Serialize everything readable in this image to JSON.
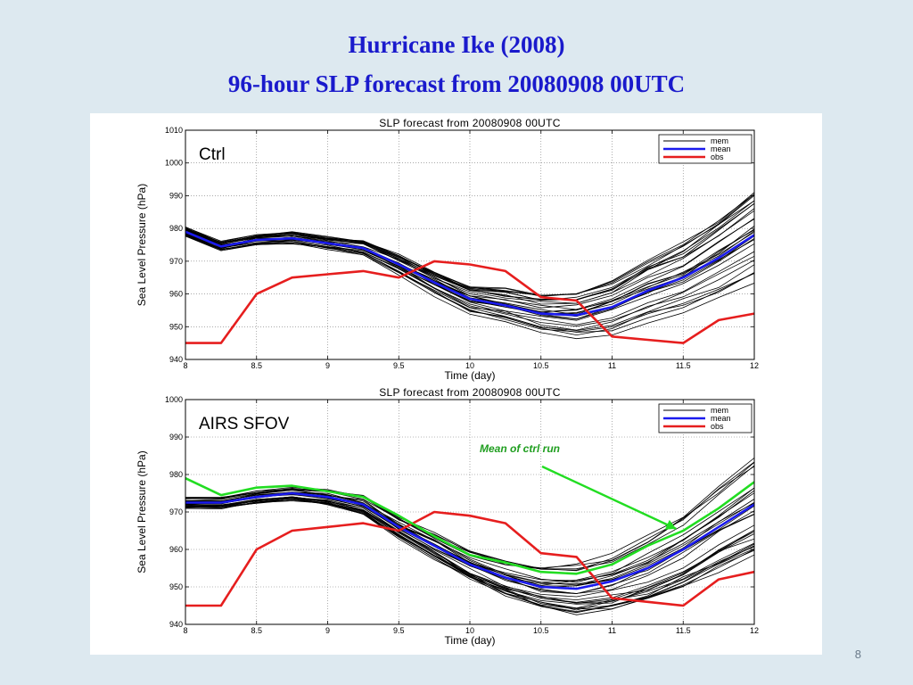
{
  "slide": {
    "title_line_1": "Hurricane Ike (2008)",
    "title_line_2": "96-hour SLP forecast from 20080908 00UTC",
    "page_number": "8",
    "title_color": "#1a1acc",
    "background": "#dde9f0"
  },
  "chart_data": [
    {
      "type": "line",
      "title": "SLP forecast from 20080908 00UTC",
      "panel_label": "Ctrl",
      "xlabel": "Time (day)",
      "ylabel": "Sea Level Pressure (hPa)",
      "xlim": [
        8,
        12
      ],
      "ylim": [
        940,
        1010
      ],
      "xticks": [
        8,
        8.5,
        9,
        9.5,
        10,
        10.5,
        11,
        11.5,
        12
      ],
      "xtick_labels": [
        "8",
        "8.5",
        "9",
        "9.5",
        "10",
        "10.5",
        "11",
        "11.5",
        "12"
      ],
      "yticks": [
        940,
        950,
        960,
        970,
        980,
        990,
        1000,
        1010
      ],
      "ytick_labels": [
        "940",
        "950",
        "960",
        "970",
        "980",
        "990",
        "1000",
        "1010"
      ],
      "grid": true,
      "legend": {
        "placement": "top-right",
        "entries": [
          {
            "label": "mem",
            "color": "#000000"
          },
          {
            "label": "mean",
            "color": "#1a1aee"
          },
          {
            "label": "obs",
            "color": "#e61e1e"
          }
        ]
      },
      "ensemble": {
        "name": "mem",
        "color": "#000000",
        "count": 30,
        "spread_start": 1.5,
        "spread_end": 15
      },
      "series": [
        {
          "name": "mean",
          "color": "#1a1aee",
          "x": [
            8,
            8.25,
            8.5,
            8.75,
            9,
            9.25,
            9.5,
            9.75,
            10,
            10.25,
            10.5,
            10.75,
            11,
            11.25,
            11.5,
            11.75,
            12
          ],
          "y": [
            979,
            974.5,
            976.5,
            977,
            975.5,
            974,
            969,
            963.5,
            958.5,
            956.5,
            954,
            953.5,
            956,
            961,
            965,
            971,
            978
          ]
        },
        {
          "name": "obs",
          "color": "#e61e1e",
          "x": [
            8,
            8.25,
            8.5,
            8.75,
            9,
            9.25,
            9.5,
            9.75,
            10,
            10.25,
            10.5,
            10.75,
            11,
            11.25,
            11.5,
            11.75,
            12
          ],
          "y": [
            945,
            945,
            960,
            965,
            966,
            967,
            965,
            970,
            969,
            967,
            959,
            958,
            947,
            946,
            945,
            952,
            954
          ]
        }
      ]
    },
    {
      "type": "line",
      "title": "SLP forecast from 20080908 00UTC",
      "panel_label": "AIRS SFOV",
      "xlabel": "Time (day)",
      "ylabel": "Sea Level Pressure (hPa)",
      "xlim": [
        8,
        12
      ],
      "ylim": [
        940,
        1000
      ],
      "xticks": [
        8,
        8.5,
        9,
        9.5,
        10,
        10.5,
        11,
        11.5,
        12
      ],
      "xtick_labels": [
        "8",
        "8.5",
        "9",
        "9.5",
        "10",
        "10.5",
        "11",
        "11.5",
        "12"
      ],
      "yticks": [
        940,
        950,
        960,
        970,
        980,
        990,
        1000
      ],
      "ytick_labels": [
        "940",
        "950",
        "960",
        "970",
        "980",
        "990",
        "1000"
      ],
      "grid": true,
      "legend": {
        "placement": "top-right",
        "entries": [
          {
            "label": "mem",
            "color": "#000000"
          },
          {
            "label": "mean",
            "color": "#1a1aee"
          },
          {
            "label": "obs",
            "color": "#e61e1e"
          }
        ]
      },
      "ensemble": {
        "name": "mem",
        "color": "#000000",
        "count": 30,
        "spread_start": 1.5,
        "spread_end": 13
      },
      "series": [
        {
          "name": "mean",
          "color": "#1a1aee",
          "x": [
            8,
            8.25,
            8.5,
            8.75,
            9,
            9.25,
            9.5,
            9.75,
            10,
            10.25,
            10.5,
            10.75,
            11,
            11.25,
            11.5,
            11.75,
            12
          ],
          "y": [
            972.5,
            972.5,
            974,
            975,
            974,
            972,
            966,
            961,
            956,
            952.5,
            950,
            949.5,
            951.5,
            955,
            960,
            966,
            972
          ]
        },
        {
          "name": "obs",
          "color": "#e61e1e",
          "x": [
            8,
            8.25,
            8.5,
            8.75,
            9,
            9.25,
            9.5,
            9.75,
            10,
            10.25,
            10.5,
            10.75,
            11,
            11.25,
            11.5,
            11.75,
            12
          ],
          "y": [
            945,
            945,
            960,
            965,
            966,
            967,
            965,
            970,
            969,
            967,
            959,
            958,
            947,
            946,
            945,
            952,
            954
          ]
        },
        {
          "name": "Mean of ctrl run",
          "color": "#22dd22",
          "x": [
            8,
            8.25,
            8.5,
            8.75,
            9,
            9.25,
            9.5,
            9.75,
            10,
            10.25,
            10.5,
            10.75,
            11,
            11.25,
            11.5,
            11.75,
            12
          ],
          "y": [
            979,
            974.5,
            976.5,
            977,
            975.5,
            974,
            969,
            963.5,
            958.5,
            956.5,
            954,
            953.5,
            956,
            961,
            965,
            971,
            978
          ]
        }
      ],
      "annotation": {
        "text": "Mean of ctrl run",
        "color": "#1f9e1f",
        "arrow_color": "#22dd22",
        "points_to": {
          "x": 11.45,
          "y": 965.5
        }
      }
    }
  ]
}
